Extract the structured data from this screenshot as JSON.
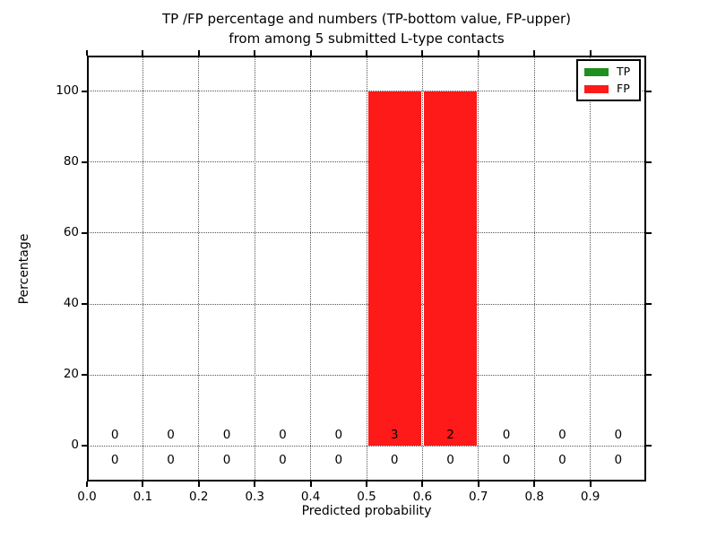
{
  "title": {
    "line1": "TP /FP percentage and numbers (TP-bottom value, FP-upper)",
    "line2": "from among 5 submitted L-type contacts"
  },
  "axes": {
    "xlabel": "Predicted probability",
    "ylabel": "Percentage"
  },
  "legend": {
    "items": [
      {
        "label": "TP",
        "color": "#1f8f1f"
      },
      {
        "label": "FP",
        "color": "#ff1a1a"
      }
    ]
  },
  "chart_data": {
    "type": "bar",
    "stacked": true,
    "title": "TP /FP percentage and numbers (TP-bottom value, FP-upper)\nfrom among 5 submitted L-type contacts",
    "xlabel": "Predicted probability",
    "ylabel": "Percentage",
    "xlim": [
      0,
      1.0
    ],
    "ylim": [
      -10,
      110
    ],
    "grid": true,
    "legend_position": "upper right",
    "xticks": {
      "values": [
        0,
        0.1,
        0.2,
        0.3,
        0.4,
        0.5,
        0.6,
        0.7,
        0.8,
        0.9
      ],
      "labels": [
        "0.0",
        "0.1",
        "0.2",
        "0.3",
        "0.4",
        "0.5",
        "0.6",
        "0.7",
        "0.8",
        "0.9"
      ]
    },
    "yticks": {
      "values": [
        0,
        20,
        40,
        60,
        80,
        100
      ],
      "labels": [
        "0",
        "20",
        "40",
        "60",
        "80",
        "100"
      ]
    },
    "bin_centers": [
      0.05,
      0.15,
      0.25,
      0.35,
      0.45,
      0.55,
      0.65,
      0.75,
      0.85,
      0.95
    ],
    "bin_width": 0.1,
    "series": [
      {
        "name": "TP",
        "color": "#1f8f1f",
        "percent_values": [
          0,
          0,
          0,
          0,
          0,
          0,
          0,
          0,
          0,
          0
        ],
        "counts": [
          0,
          0,
          0,
          0,
          0,
          0,
          0,
          0,
          0,
          0
        ],
        "count_label_y": -4.2
      },
      {
        "name": "FP",
        "color": "#ff1a1a",
        "percent_values": [
          0,
          0,
          0,
          0,
          0,
          100,
          100,
          0,
          0,
          0
        ],
        "counts": [
          0,
          0,
          0,
          0,
          0,
          3,
          2,
          0,
          0,
          0
        ],
        "count_label_y": 2.9
      }
    ]
  }
}
